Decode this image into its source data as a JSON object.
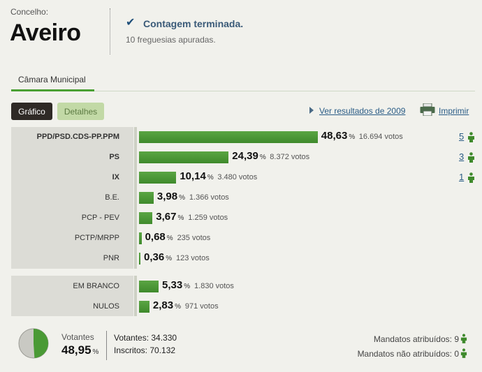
{
  "header": {
    "concelho_label": "Concelho:",
    "concelho_name": "Aveiro",
    "status_title": "Contagem terminada.",
    "status_sub": "10 freguesias apuradas."
  },
  "tabs": [
    {
      "label": "Câmara Municipal",
      "active": true
    }
  ],
  "toolbar": {
    "grafico_label": "Gráfico",
    "detalhes_label": "Detalhes",
    "results_2009_link": "Ver resultados de 2009",
    "print_link": "Imprimir"
  },
  "colors": {
    "bar": "#4a9a35",
    "link": "#2a5c86",
    "active_button": "#2f2a26",
    "inactive_button": "#c2d9a6"
  },
  "chart_data": {
    "type": "bar",
    "orientation": "horizontal",
    "percent_symbol": "%",
    "votes_suffix": "votos",
    "series": [
      {
        "party": "PPD/PSD.CDS-PP.PPM",
        "pct_label": "48,63",
        "pct": 48.63,
        "votes": "16.694",
        "seats": "5",
        "bold": true
      },
      {
        "party": "PS",
        "pct_label": "24,39",
        "pct": 24.39,
        "votes": "8.372",
        "seats": "3",
        "bold": true
      },
      {
        "party": "IX",
        "pct_label": "10,14",
        "pct": 10.14,
        "votes": "3.480",
        "seats": "1",
        "bold": true
      },
      {
        "party": "B.E.",
        "pct_label": "3,98",
        "pct": 3.98,
        "votes": "1.366",
        "seats": "",
        "bold": false
      },
      {
        "party": "PCP - PEV",
        "pct_label": "3,67",
        "pct": 3.67,
        "votes": "1.259",
        "seats": "",
        "bold": false
      },
      {
        "party": "PCTP/MRPP",
        "pct_label": "0,68",
        "pct": 0.68,
        "votes": "235",
        "seats": "",
        "bold": false
      },
      {
        "party": "PNR",
        "pct_label": "0,36",
        "pct": 0.36,
        "votes": "123",
        "seats": "",
        "bold": false
      }
    ],
    "others": [
      {
        "party": "EM BRANCO",
        "pct_label": "5,33",
        "pct": 5.33,
        "votes": "1.830"
      },
      {
        "party": "NULOS",
        "pct_label": "2,83",
        "pct": 2.83,
        "votes": "971"
      }
    ]
  },
  "summary": {
    "votantes_label": "Votantes",
    "votantes_pct_label": "48,95",
    "votantes_pct": 48.95,
    "pct_symbol": "%",
    "votantes_line": "Votantes: 34.330",
    "inscritos_line": "Inscritos: 70.132",
    "mandatos_atribuidos": "Mandatos atribuídos: 9",
    "mandatos_nao_atribuidos": "Mandatos não atribuídos: 0"
  }
}
